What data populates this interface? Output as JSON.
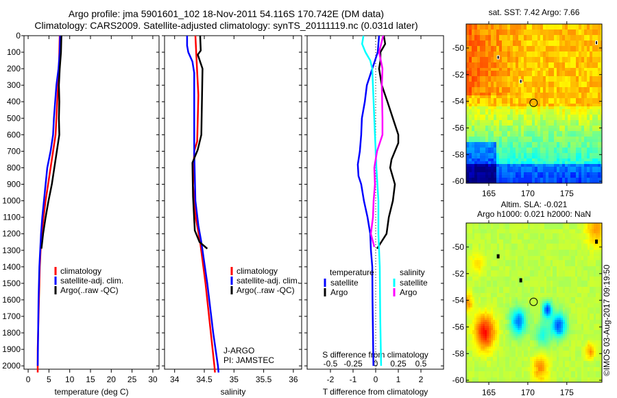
{
  "header": {
    "title_line1": "Argo profile: jma 5901601_102 18-Nov-2011 54.116S 170.742E (DM data)",
    "title_line2": "Climatology: CARS2009. Satellite-adjusted climatology: synTS_20111119.nc (0.031d later)"
  },
  "colors": {
    "climatology": "#ff0000",
    "satellite": "#0000ff",
    "argo": "#000000",
    "sal_satellite": "#00ffff",
    "sal_argo": "#ff00ff"
  },
  "chart_data": [
    {
      "type": "line",
      "title": "",
      "xlabel": "temperature (deg C)",
      "ylabel": "",
      "xlim": [
        -1,
        31.5
      ],
      "ylim": [
        2020,
        0
      ],
      "xticks": [
        "0",
        "5",
        "10",
        "15",
        "20",
        "25",
        "30"
      ],
      "xtick_values": [
        0,
        5,
        10,
        15,
        20,
        25,
        30
      ],
      "yticks": [
        "0",
        "100",
        "200",
        "300",
        "400",
        "500",
        "600",
        "700",
        "800",
        "900",
        "1000",
        "1100",
        "1200",
        "1300",
        "1400",
        "1500",
        "1600",
        "1700",
        "1800",
        "1900",
        "2000"
      ],
      "legend": [
        "climatology",
        "satellite-adj. clim.",
        "Argo(..raw -QC)"
      ],
      "legend_position": "lower-center",
      "series": [
        {
          "name": "climatology",
          "color": "#ff0000",
          "depth": [
            0,
            100,
            200,
            300,
            400,
            500,
            600,
            700,
            800,
            900,
            1000,
            1100,
            1200,
            1300,
            1400,
            1500,
            1600,
            1700,
            1800,
            1900,
            2000,
            2040
          ],
          "values": [
            7.6,
            7.5,
            7.4,
            7.2,
            7.0,
            6.8,
            6.6,
            6.0,
            5.4,
            4.8,
            4.2,
            3.7,
            3.3,
            3.0,
            2.8,
            2.7,
            2.6,
            2.5,
            2.4,
            2.3,
            2.3,
            2.3
          ]
        },
        {
          "name": "satellite-adj. clim.",
          "color": "#0000ff",
          "depth": [
            0,
            100,
            200,
            300,
            400,
            500,
            600,
            700,
            800,
            900,
            1000,
            1100,
            1200,
            1300,
            1400,
            1500,
            1600,
            1700,
            1800,
            1900,
            2000
          ],
          "values": [
            7.7,
            7.6,
            7.3,
            6.8,
            6.5,
            6.2,
            6.0,
            5.4,
            4.6,
            4.2,
            3.8,
            3.4,
            3.1,
            2.9,
            2.7,
            2.6,
            2.5,
            2.45,
            2.4,
            2.35,
            2.3
          ]
        },
        {
          "name": "Argo(..raw -QC)",
          "color": "#000000",
          "depth": [
            0,
            100,
            200,
            300,
            400,
            500,
            600,
            700,
            800,
            900,
            1000,
            1100,
            1200,
            1290
          ],
          "values": [
            8.0,
            7.9,
            7.6,
            7.4,
            7.5,
            7.4,
            7.5,
            6.9,
            6.3,
            5.7,
            4.9,
            4.2,
            3.6,
            3.2
          ]
        }
      ]
    },
    {
      "type": "line",
      "title": "",
      "xlabel": "salinity",
      "ylabel": "",
      "xlim": [
        33.83,
        36.14
      ],
      "ylim": [
        2020,
        0
      ],
      "xticks": [
        "34",
        "34.5",
        "35",
        "35.5",
        "36"
      ],
      "xtick_values": [
        34,
        34.5,
        35,
        35.5,
        36
      ],
      "legend": [
        "climatology",
        "satellite-adj. clim.",
        "Argo(..raw -QC)"
      ],
      "legend_position": "lower-center",
      "annotations": [
        "J-ARGO",
        "PI: JAMSTEC"
      ],
      "series": [
        {
          "name": "climatology",
          "color": "#ff0000",
          "depth": [
            0,
            150,
            360,
            640,
            700,
            910,
            1110,
            1250,
            1500,
            1800,
            2000,
            2040
          ],
          "values": [
            34.35,
            34.37,
            34.4,
            34.38,
            34.33,
            34.31,
            34.36,
            34.43,
            34.52,
            34.61,
            34.67,
            34.68
          ]
        },
        {
          "name": "satellite-adj. clim.",
          "color": "#0000ff",
          "depth": [
            0,
            60,
            100,
            157,
            225,
            500,
            700,
            1000,
            1150,
            1250,
            1500,
            1800,
            2000,
            2040
          ],
          "values": [
            34.21,
            34.21,
            34.23,
            34.3,
            34.33,
            34.33,
            34.33,
            34.35,
            34.4,
            34.45,
            34.55,
            34.65,
            34.73,
            34.74
          ]
        },
        {
          "name": "Argo(..raw -QC)",
          "color": "#000000",
          "depth": [
            0,
            90,
            115,
            200,
            400,
            600,
            690,
            770,
            975,
            1180,
            1250,
            1290
          ],
          "values": [
            34.43,
            34.44,
            34.39,
            34.47,
            34.46,
            34.45,
            34.39,
            34.3,
            34.31,
            34.34,
            34.42,
            34.55
          ]
        }
      ]
    },
    {
      "type": "line",
      "title": "",
      "xlabel": "T difference from climatology",
      "xlabel2": "S difference from climatology",
      "xlim": [
        -3.03,
        3.0
      ],
      "x2lim": [
        -0.7575,
        0.75
      ],
      "ylim": [
        2020,
        0
      ],
      "xticks": [
        "-2",
        "-1",
        "0",
        "1",
        "2"
      ],
      "xtick_values": [
        -2,
        -1,
        0,
        1,
        2
      ],
      "x2ticks": [
        "-0.5",
        "-0.25",
        "0",
        "0.25",
        "0.5"
      ],
      "x2tick_values": [
        -0.5,
        -0.25,
        0,
        0.25,
        0.5
      ],
      "legend_temperature_title": "temperature",
      "legend_salinity_title": "salinity",
      "legend": [
        "satellite",
        "Argo",
        "satellite",
        "Argo"
      ],
      "legend_position": "lower-center",
      "series": [
        {
          "name": "temperature satellite",
          "axis": "T",
          "color": "#0000ff",
          "depth": [
            0,
            100,
            150,
            200,
            300,
            400,
            500,
            600,
            700,
            780,
            850,
            900,
            1000,
            1100,
            1200,
            1300,
            1400,
            1600,
            1800,
            2000
          ],
          "values": [
            0.15,
            0.09,
            -0.03,
            -0.15,
            -0.39,
            -0.48,
            -0.61,
            -0.64,
            -0.7,
            -0.79,
            -0.76,
            -0.64,
            -0.52,
            -0.36,
            -0.24,
            -0.21,
            -0.15,
            -0.14,
            -0.12,
            -0.1
          ]
        },
        {
          "name": "temperature Argo",
          "axis": "T",
          "color": "#000000",
          "depth": [
            0,
            50,
            100,
            150,
            200,
            300,
            400,
            500,
            600,
            650,
            750,
            800,
            900,
            1000,
            1100,
            1200,
            1290
          ],
          "values": [
            0.36,
            0.42,
            0.21,
            0.21,
            0.15,
            0.27,
            0.52,
            0.76,
            1.0,
            1.0,
            0.7,
            0.64,
            0.85,
            0.76,
            0.58,
            0.48,
            0.06
          ]
        },
        {
          "name": "salinity satellite",
          "axis": "S",
          "color": "#00ffff",
          "depth": [
            0,
            50,
            100,
            150,
            200,
            400,
            600,
            800,
            1000,
            1200,
            1400,
            1700,
            2000
          ],
          "values": [
            -0.135,
            -0.15,
            -0.113,
            -0.06,
            -0.038,
            -0.023,
            -0.008,
            0.008,
            0.03,
            0.03,
            0.045,
            0.05,
            0.06
          ]
        },
        {
          "name": "salinity Argo",
          "axis": "S",
          "color": "#ff00ff",
          "depth": [
            0,
            100,
            200,
            300,
            500,
            600,
            700,
            800,
            900,
            1000,
            1100,
            1200,
            1280
          ],
          "values": [
            0.083,
            0.038,
            0.075,
            0.068,
            0.075,
            0.075,
            0.015,
            -0.015,
            -0.008,
            -0.023,
            -0.03,
            -0.053,
            -0.015
          ]
        }
      ]
    }
  ],
  "maps": {
    "sst": {
      "title": "sat. SST: 7.42 Argo: 7.66",
      "lat_ticks": [
        "-50",
        "-52",
        "-54",
        "-56",
        "-58",
        "-60"
      ],
      "lon_ticks": [
        "165",
        "170",
        "175"
      ],
      "argo_lon": 170.742,
      "argo_lat": -54.116
    },
    "sla": {
      "title_line1": "Altim. SLA: -0.021",
      "title_line2": "Argo h1000: 0.021 h2000: NaN",
      "lat_ticks": [
        "-50",
        "-52",
        "-54",
        "-56",
        "-58",
        "-60"
      ],
      "lon_ticks": [
        "165",
        "170",
        "175"
      ],
      "argo_lon": 170.742,
      "argo_lat": -54.116
    },
    "credit": "©IMOS 03-Aug-2017 09:19:50"
  }
}
